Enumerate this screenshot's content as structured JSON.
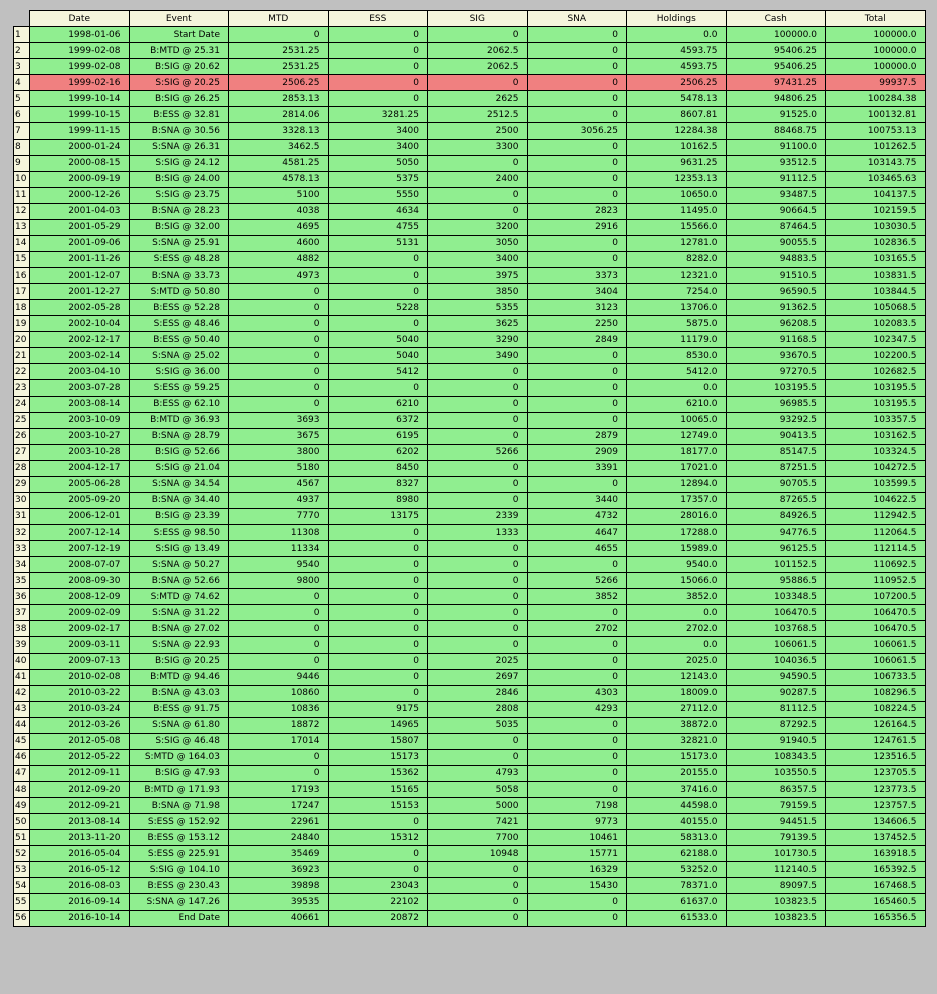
{
  "colors": {
    "row": "#90ee90",
    "highlight": "#f08080",
    "header": "#f5f5dc",
    "background": "#c0c0c0"
  },
  "columns": [
    "Date",
    "Event",
    "MTD",
    "ESS",
    "SIG",
    "SNA",
    "Holdings",
    "Cash",
    "Total"
  ],
  "highlighted_index": 4,
  "rows": [
    {
      "i": "1",
      "c": [
        "1998-01-06",
        "Start Date",
        "0",
        "0",
        "0",
        "0",
        "0.0",
        "100000.0",
        "100000.0"
      ]
    },
    {
      "i": "2",
      "c": [
        "1999-02-08",
        "B:MTD @ 25.31",
        "2531.25",
        "0",
        "2062.5",
        "0",
        "4593.75",
        "95406.25",
        "100000.0"
      ]
    },
    {
      "i": "3",
      "c": [
        "1999-02-08",
        "B:SIG @ 20.62",
        "2531.25",
        "0",
        "2062.5",
        "0",
        "4593.75",
        "95406.25",
        "100000.0"
      ]
    },
    {
      "i": "4",
      "c": [
        "1999-02-16",
        "S:SIG @ 20.25",
        "2506.25",
        "0",
        "0",
        "0",
        "2506.25",
        "97431.25",
        "99937.5"
      ]
    },
    {
      "i": "5",
      "c": [
        "1999-10-14",
        "B:SIG @ 26.25",
        "2853.13",
        "0",
        "2625",
        "0",
        "5478.13",
        "94806.25",
        "100284.38"
      ]
    },
    {
      "i": "6",
      "c": [
        "1999-10-15",
        "B:ESS @ 32.81",
        "2814.06",
        "3281.25",
        "2512.5",
        "0",
        "8607.81",
        "91525.0",
        "100132.81"
      ]
    },
    {
      "i": "7",
      "c": [
        "1999-11-15",
        "B:SNA @ 30.56",
        "3328.13",
        "3400",
        "2500",
        "3056.25",
        "12284.38",
        "88468.75",
        "100753.13"
      ]
    },
    {
      "i": "8",
      "c": [
        "2000-01-24",
        "S:SNA @ 26.31",
        "3462.5",
        "3400",
        "3300",
        "0",
        "10162.5",
        "91100.0",
        "101262.5"
      ]
    },
    {
      "i": "9",
      "c": [
        "2000-08-15",
        "S:SIG @ 24.12",
        "4581.25",
        "5050",
        "0",
        "0",
        "9631.25",
        "93512.5",
        "103143.75"
      ]
    },
    {
      "i": "10",
      "c": [
        "2000-09-19",
        "B:SIG @ 24.00",
        "4578.13",
        "5375",
        "2400",
        "0",
        "12353.13",
        "91112.5",
        "103465.63"
      ]
    },
    {
      "i": "11",
      "c": [
        "2000-12-26",
        "S:SIG @ 23.75",
        "5100",
        "5550",
        "0",
        "0",
        "10650.0",
        "93487.5",
        "104137.5"
      ]
    },
    {
      "i": "12",
      "c": [
        "2001-04-03",
        "B:SNA @ 28.23",
        "4038",
        "4634",
        "0",
        "2823",
        "11495.0",
        "90664.5",
        "102159.5"
      ]
    },
    {
      "i": "13",
      "c": [
        "2001-05-29",
        "B:SIG @ 32.00",
        "4695",
        "4755",
        "3200",
        "2916",
        "15566.0",
        "87464.5",
        "103030.5"
      ]
    },
    {
      "i": "14",
      "c": [
        "2001-09-06",
        "S:SNA @ 25.91",
        "4600",
        "5131",
        "3050",
        "0",
        "12781.0",
        "90055.5",
        "102836.5"
      ]
    },
    {
      "i": "15",
      "c": [
        "2001-11-26",
        "S:ESS @ 48.28",
        "4882",
        "0",
        "3400",
        "0",
        "8282.0",
        "94883.5",
        "103165.5"
      ]
    },
    {
      "i": "16",
      "c": [
        "2001-12-07",
        "B:SNA @ 33.73",
        "4973",
        "0",
        "3975",
        "3373",
        "12321.0",
        "91510.5",
        "103831.5"
      ]
    },
    {
      "i": "17",
      "c": [
        "2001-12-27",
        "S:MTD @ 50.80",
        "0",
        "0",
        "3850",
        "3404",
        "7254.0",
        "96590.5",
        "103844.5"
      ]
    },
    {
      "i": "18",
      "c": [
        "2002-05-28",
        "B:ESS @ 52.28",
        "0",
        "5228",
        "5355",
        "3123",
        "13706.0",
        "91362.5",
        "105068.5"
      ]
    },
    {
      "i": "19",
      "c": [
        "2002-10-04",
        "S:ESS @ 48.46",
        "0",
        "0",
        "3625",
        "2250",
        "5875.0",
        "96208.5",
        "102083.5"
      ]
    },
    {
      "i": "20",
      "c": [
        "2002-12-17",
        "B:ESS @ 50.40",
        "0",
        "5040",
        "3290",
        "2849",
        "11179.0",
        "91168.5",
        "102347.5"
      ]
    },
    {
      "i": "21",
      "c": [
        "2003-02-14",
        "S:SNA @ 25.02",
        "0",
        "5040",
        "3490",
        "0",
        "8530.0",
        "93670.5",
        "102200.5"
      ]
    },
    {
      "i": "22",
      "c": [
        "2003-04-10",
        "S:SIG @ 36.00",
        "0",
        "5412",
        "0",
        "0",
        "5412.0",
        "97270.5",
        "102682.5"
      ]
    },
    {
      "i": "23",
      "c": [
        "2003-07-28",
        "S:ESS @ 59.25",
        "0",
        "0",
        "0",
        "0",
        "0.0",
        "103195.5",
        "103195.5"
      ]
    },
    {
      "i": "24",
      "c": [
        "2003-08-14",
        "B:ESS @ 62.10",
        "0",
        "6210",
        "0",
        "0",
        "6210.0",
        "96985.5",
        "103195.5"
      ]
    },
    {
      "i": "25",
      "c": [
        "2003-10-09",
        "B:MTD @ 36.93",
        "3693",
        "6372",
        "0",
        "0",
        "10065.0",
        "93292.5",
        "103357.5"
      ]
    },
    {
      "i": "26",
      "c": [
        "2003-10-27",
        "B:SNA @ 28.79",
        "3675",
        "6195",
        "0",
        "2879",
        "12749.0",
        "90413.5",
        "103162.5"
      ]
    },
    {
      "i": "27",
      "c": [
        "2003-10-28",
        "B:SIG @ 52.66",
        "3800",
        "6202",
        "5266",
        "2909",
        "18177.0",
        "85147.5",
        "103324.5"
      ]
    },
    {
      "i": "28",
      "c": [
        "2004-12-17",
        "S:SIG @ 21.04",
        "5180",
        "8450",
        "0",
        "3391",
        "17021.0",
        "87251.5",
        "104272.5"
      ]
    },
    {
      "i": "29",
      "c": [
        "2005-06-28",
        "S:SNA @ 34.54",
        "4567",
        "8327",
        "0",
        "0",
        "12894.0",
        "90705.5",
        "103599.5"
      ]
    },
    {
      "i": "30",
      "c": [
        "2005-09-20",
        "B:SNA @ 34.40",
        "4937",
        "8980",
        "0",
        "3440",
        "17357.0",
        "87265.5",
        "104622.5"
      ]
    },
    {
      "i": "31",
      "c": [
        "2006-12-01",
        "B:SIG @ 23.39",
        "7770",
        "13175",
        "2339",
        "4732",
        "28016.0",
        "84926.5",
        "112942.5"
      ]
    },
    {
      "i": "32",
      "c": [
        "2007-12-14",
        "S:ESS @ 98.50",
        "11308",
        "0",
        "1333",
        "4647",
        "17288.0",
        "94776.5",
        "112064.5"
      ]
    },
    {
      "i": "33",
      "c": [
        "2007-12-19",
        "S:SIG @ 13.49",
        "11334",
        "0",
        "0",
        "4655",
        "15989.0",
        "96125.5",
        "112114.5"
      ]
    },
    {
      "i": "34",
      "c": [
        "2008-07-07",
        "S:SNA @ 50.27",
        "9540",
        "0",
        "0",
        "0",
        "9540.0",
        "101152.5",
        "110692.5"
      ]
    },
    {
      "i": "35",
      "c": [
        "2008-09-30",
        "B:SNA @ 52.66",
        "9800",
        "0",
        "0",
        "5266",
        "15066.0",
        "95886.5",
        "110952.5"
      ]
    },
    {
      "i": "36",
      "c": [
        "2008-12-09",
        "S:MTD @ 74.62",
        "0",
        "0",
        "0",
        "3852",
        "3852.0",
        "103348.5",
        "107200.5"
      ]
    },
    {
      "i": "37",
      "c": [
        "2009-02-09",
        "S:SNA @ 31.22",
        "0",
        "0",
        "0",
        "0",
        "0.0",
        "106470.5",
        "106470.5"
      ]
    },
    {
      "i": "38",
      "c": [
        "2009-02-17",
        "B:SNA @ 27.02",
        "0",
        "0",
        "0",
        "2702",
        "2702.0",
        "103768.5",
        "106470.5"
      ]
    },
    {
      "i": "39",
      "c": [
        "2009-03-11",
        "S:SNA @ 22.93",
        "0",
        "0",
        "0",
        "0",
        "0.0",
        "106061.5",
        "106061.5"
      ]
    },
    {
      "i": "40",
      "c": [
        "2009-07-13",
        "B:SIG @ 20.25",
        "0",
        "0",
        "2025",
        "0",
        "2025.0",
        "104036.5",
        "106061.5"
      ]
    },
    {
      "i": "41",
      "c": [
        "2010-02-08",
        "B:MTD @ 94.46",
        "9446",
        "0",
        "2697",
        "0",
        "12143.0",
        "94590.5",
        "106733.5"
      ]
    },
    {
      "i": "42",
      "c": [
        "2010-03-22",
        "B:SNA @ 43.03",
        "10860",
        "0",
        "2846",
        "4303",
        "18009.0",
        "90287.5",
        "108296.5"
      ]
    },
    {
      "i": "43",
      "c": [
        "2010-03-24",
        "B:ESS @ 91.75",
        "10836",
        "9175",
        "2808",
        "4293",
        "27112.0",
        "81112.5",
        "108224.5"
      ]
    },
    {
      "i": "44",
      "c": [
        "2012-03-26",
        "S:SNA @ 61.80",
        "18872",
        "14965",
        "5035",
        "0",
        "38872.0",
        "87292.5",
        "126164.5"
      ]
    },
    {
      "i": "45",
      "c": [
        "2012-05-08",
        "S:SIG @ 46.48",
        "17014",
        "15807",
        "0",
        "0",
        "32821.0",
        "91940.5",
        "124761.5"
      ]
    },
    {
      "i": "46",
      "c": [
        "2012-05-22",
        "S:MTD @ 164.03",
        "0",
        "15173",
        "0",
        "0",
        "15173.0",
        "108343.5",
        "123516.5"
      ]
    },
    {
      "i": "47",
      "c": [
        "2012-09-11",
        "B:SIG @ 47.93",
        "0",
        "15362",
        "4793",
        "0",
        "20155.0",
        "103550.5",
        "123705.5"
      ]
    },
    {
      "i": "48",
      "c": [
        "2012-09-20",
        "B:MTD @ 171.93",
        "17193",
        "15165",
        "5058",
        "0",
        "37416.0",
        "86357.5",
        "123773.5"
      ]
    },
    {
      "i": "49",
      "c": [
        "2012-09-21",
        "B:SNA @ 71.98",
        "17247",
        "15153",
        "5000",
        "7198",
        "44598.0",
        "79159.5",
        "123757.5"
      ]
    },
    {
      "i": "50",
      "c": [
        "2013-08-14",
        "S:ESS @ 152.92",
        "22961",
        "0",
        "7421",
        "9773",
        "40155.0",
        "94451.5",
        "134606.5"
      ]
    },
    {
      "i": "51",
      "c": [
        "2013-11-20",
        "B:ESS @ 153.12",
        "24840",
        "15312",
        "7700",
        "10461",
        "58313.0",
        "79139.5",
        "137452.5"
      ]
    },
    {
      "i": "52",
      "c": [
        "2016-05-04",
        "S:ESS @ 225.91",
        "35469",
        "0",
        "10948",
        "15771",
        "62188.0",
        "101730.5",
        "163918.5"
      ]
    },
    {
      "i": "53",
      "c": [
        "2016-05-12",
        "S:SIG @ 104.10",
        "36923",
        "0",
        "0",
        "16329",
        "53252.0",
        "112140.5",
        "165392.5"
      ]
    },
    {
      "i": "54",
      "c": [
        "2016-08-03",
        "B:ESS @ 230.43",
        "39898",
        "23043",
        "0",
        "15430",
        "78371.0",
        "89097.5",
        "167468.5"
      ]
    },
    {
      "i": "55",
      "c": [
        "2016-09-14",
        "S:SNA @ 147.26",
        "39535",
        "22102",
        "0",
        "0",
        "61637.0",
        "103823.5",
        "165460.5"
      ]
    },
    {
      "i": "56",
      "c": [
        "2016-10-14",
        "End Date",
        "40661",
        "20872",
        "0",
        "0",
        "61533.0",
        "103823.5",
        "165356.5"
      ]
    }
  ]
}
